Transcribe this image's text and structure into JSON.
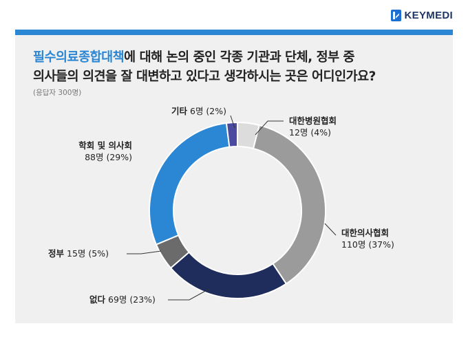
{
  "brand": {
    "name": "KEYMEDI"
  },
  "header": {
    "title_highlight": "필수의료종합대책",
    "title_rest_line1": "에 대해 논의 중인 각종 기관과 단체, 정부 중",
    "title_line2": "의사들의 의견을 잘 대변하고 있다고 생각하시는 곳은 어디인가요?",
    "note": "(응답자 300명)"
  },
  "colors": {
    "accent": "#2b86d3",
    "card_bg": "#f0f0f0"
  },
  "chart_data": {
    "type": "pie",
    "style": "donut",
    "total_respondents": 300,
    "slices": [
      {
        "name": "대한병원협회",
        "count_label": "12명",
        "percent_label": "(4%)",
        "percent": 4,
        "count": 12,
        "color": "#dcdcdc"
      },
      {
        "name": "대한의사협회",
        "count_label": "110명",
        "percent_label": "(37%)",
        "percent": 37,
        "count": 110,
        "color": "#9b9b9b"
      },
      {
        "name": "없다",
        "count_label": "69명",
        "percent_label": "(23%)",
        "percent": 23,
        "count": 69,
        "color": "#1f2d5c"
      },
      {
        "name": "정부",
        "count_label": "15명",
        "percent_label": "(5%)",
        "percent": 5,
        "count": 15,
        "color": "#6b6b6b"
      },
      {
        "name": "학회 및 의사회",
        "count_label": "88명",
        "percent_label": "(29%)",
        "percent": 29,
        "count": 88,
        "color": "#2b86d3"
      },
      {
        "name": "기타",
        "count_label": "6명",
        "percent_label": "(2%)",
        "percent": 2,
        "count": 6,
        "color": "#4a4aa0"
      }
    ]
  }
}
